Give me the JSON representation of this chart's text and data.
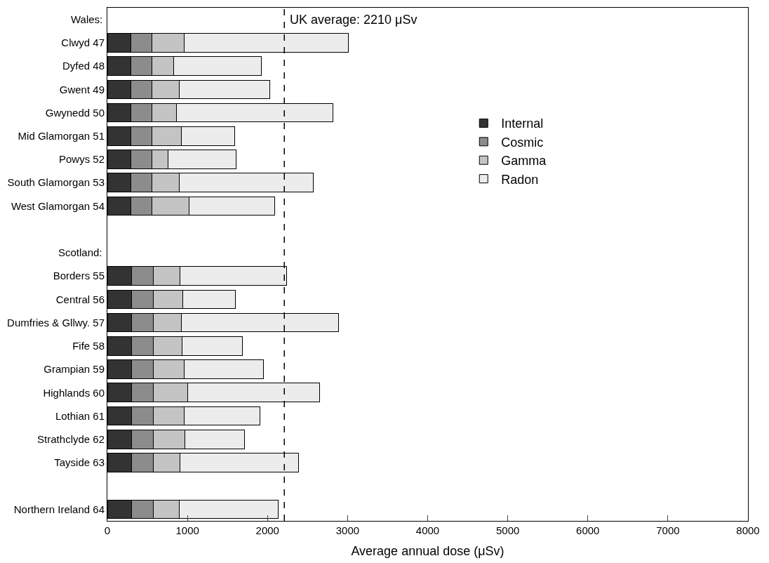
{
  "chart_data": {
    "type": "bar",
    "orientation": "horizontal",
    "stacked": true,
    "annotations": [
      "Wales:",
      "Scotland:"
    ],
    "categories": [
      null,
      "Clwyd 47",
      "Dyfed 48",
      "Gwent 49",
      "Gwynedd 50",
      "Mid Glamorgan 51",
      "Powys 52",
      "South Glamorgan 53",
      "West Glamorgan 54",
      null,
      null,
      "Borders 55",
      "Central 56",
      "Dumfries & Gllwy. 57",
      "Fife 58",
      "Grampian 59",
      "Highlands 60",
      "Lothian 61",
      "Strathclyde 62",
      "Tayside 63",
      null,
      "Northern Ireland 64"
    ],
    "series": [
      {
        "name": "Internal",
        "color": "#333333",
        "values": [
          null,
          290,
          290,
          290,
          290,
          290,
          290,
          290,
          290,
          null,
          null,
          300,
          300,
          300,
          300,
          300,
          300,
          300,
          300,
          300,
          null,
          300
        ]
      },
      {
        "name": "Cosmic",
        "color": "#8c8c8c",
        "values": [
          null,
          270,
          270,
          270,
          270,
          270,
          270,
          270,
          270,
          null,
          null,
          270,
          270,
          270,
          270,
          270,
          270,
          270,
          270,
          270,
          null,
          270
        ]
      },
      {
        "name": "Gamma",
        "color": "#c4c4c4",
        "values": [
          null,
          400,
          270,
          340,
          300,
          360,
          200,
          340,
          460,
          null,
          null,
          340,
          370,
          350,
          360,
          390,
          430,
          390,
          400,
          340,
          null,
          330
        ]
      },
      {
        "name": "Radon",
        "color": "#ececec",
        "values": [
          null,
          2050,
          1090,
          1130,
          1960,
          670,
          850,
          1670,
          1070,
          null,
          null,
          1330,
          660,
          1970,
          760,
          990,
          1650,
          950,
          740,
          1480,
          null,
          1230
        ]
      }
    ],
    "ref_lines": [
      {
        "axis": "x",
        "value": 2210,
        "label": "UK average: 2210 μSv",
        "line_style": "dashed",
        "color": "#000000"
      }
    ],
    "xlabel": "Average annual dose (μSv)",
    "xlim": [
      0,
      8000
    ],
    "xticks": [
      0,
      1000,
      2000,
      3000,
      4000,
      5000,
      6000,
      7000,
      8000
    ],
    "legend": "right"
  }
}
